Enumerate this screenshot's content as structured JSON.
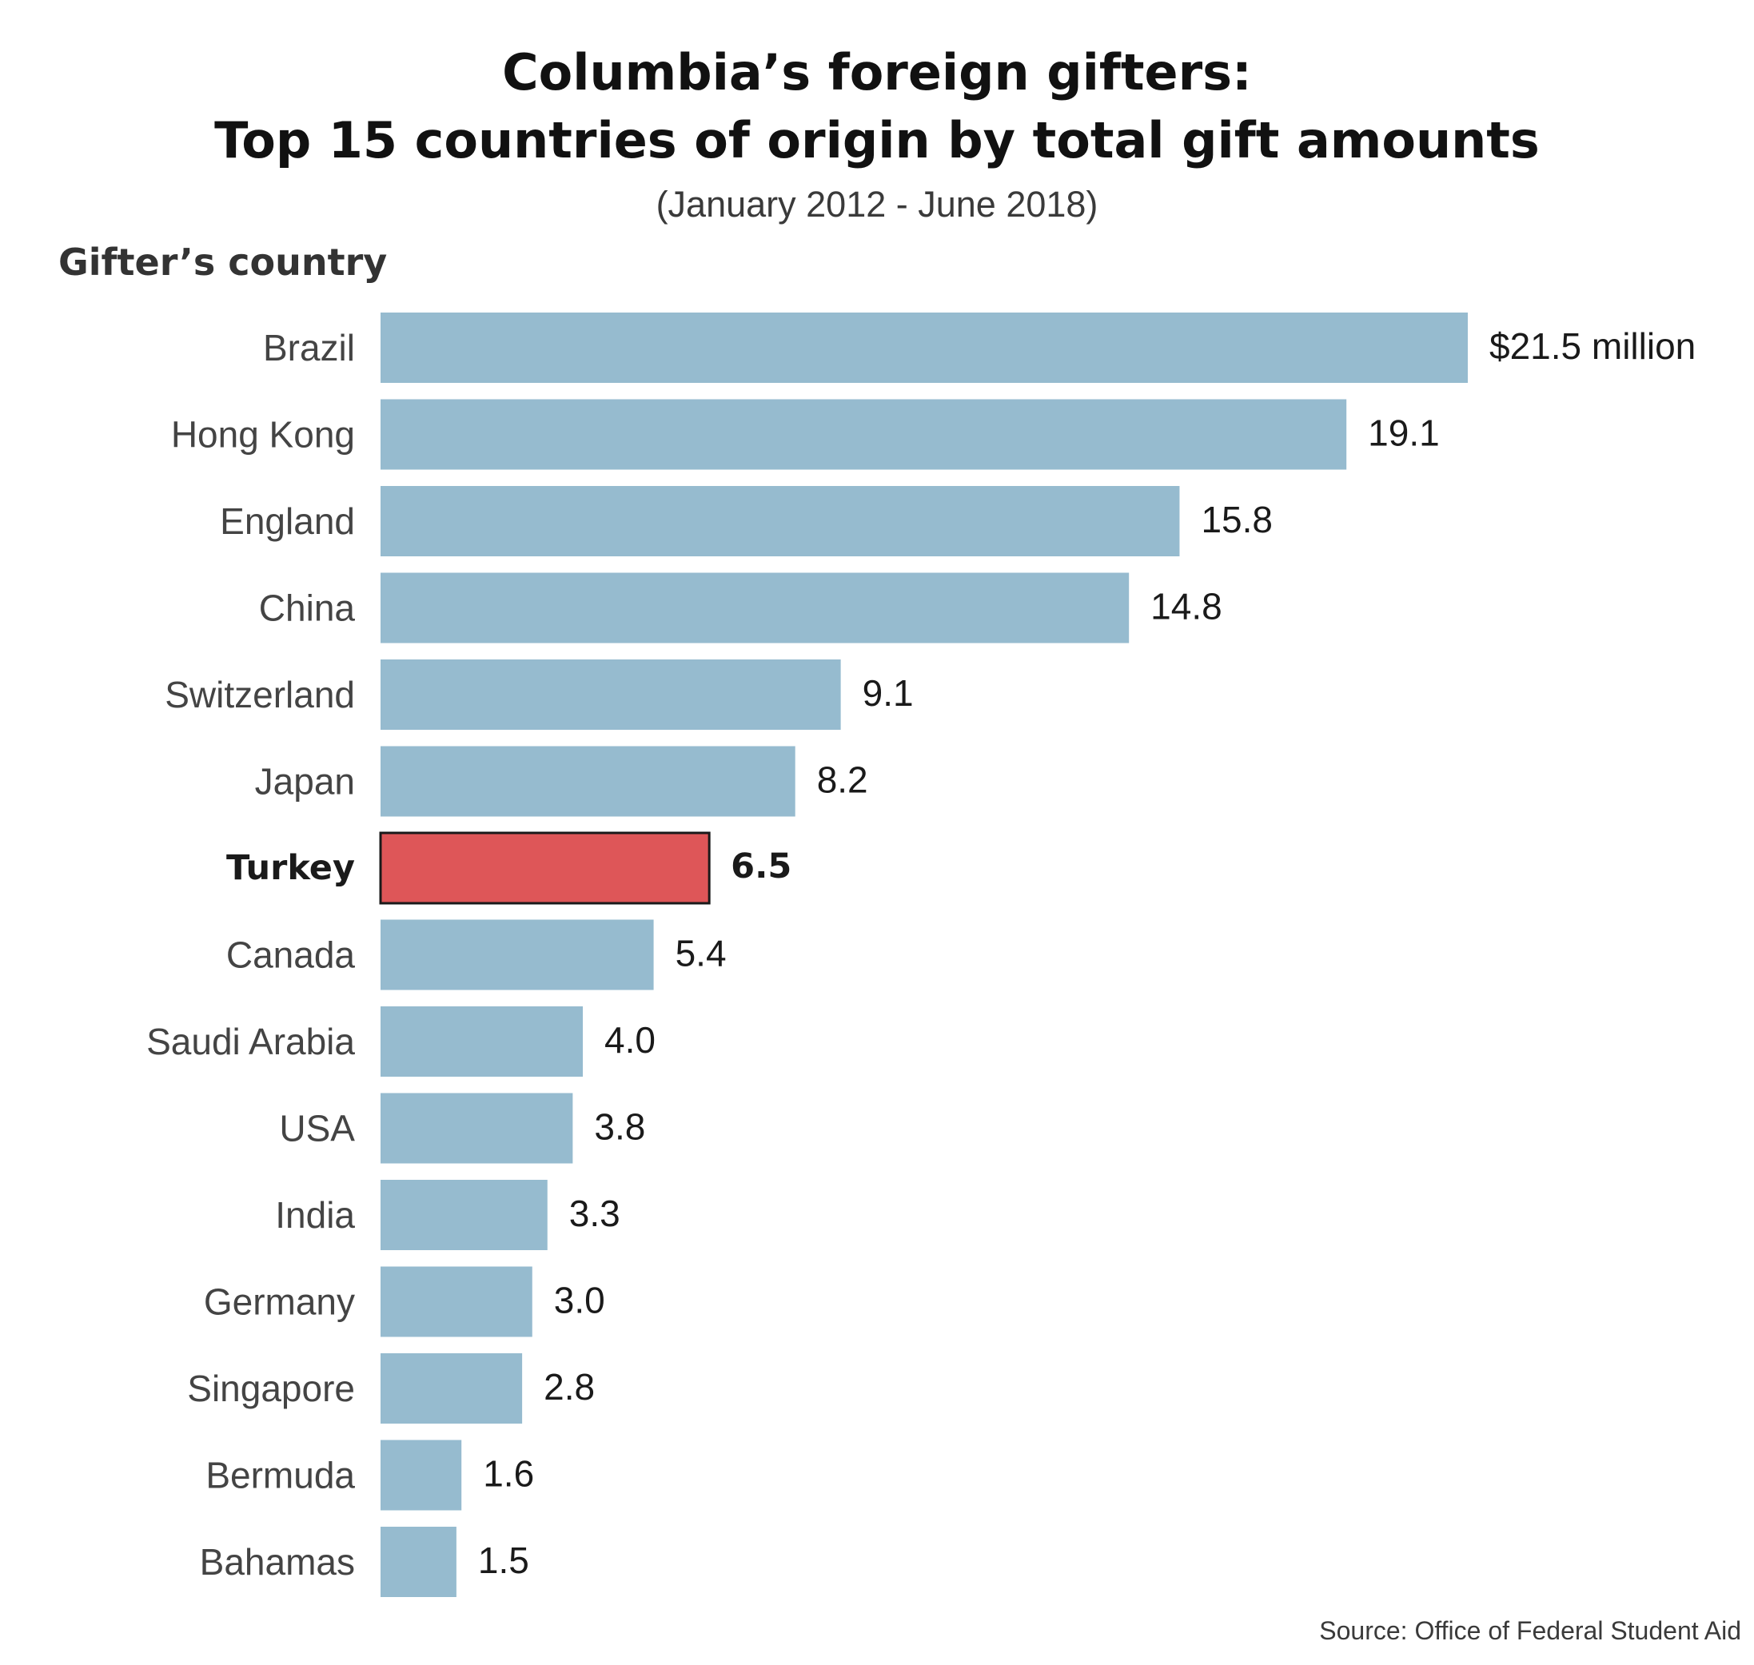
{
  "header": {
    "title_line1": "Columbia’s foreign gifters:",
    "title_line2": "Top 15 countries of origin by total gift amounts",
    "subtitle": "(January 2012 - June 2018)"
  },
  "footer": {
    "source": "Source: Office of Federal Student Aid"
  },
  "colors": {
    "bar": "#96bbcf",
    "highlight": "#de5658",
    "highlight_outline": "#1a1a1a"
  },
  "chart_data": {
    "type": "bar",
    "orientation": "horizontal",
    "title": "Columbia’s foreign gifters: Top 15 countries of origin by total gift amounts",
    "subtitle": "(January 2012 - June 2018)",
    "ylabel": "Gifter’s country",
    "xlabel": "",
    "unit": "$ million",
    "categories": [
      "Brazil",
      "Hong Kong",
      "England",
      "China",
      "Switzerland",
      "Japan",
      "Turkey",
      "Canada",
      "Saudi Arabia",
      "USA",
      "India",
      "Germany",
      "Singapore",
      "Bermuda",
      "Bahamas"
    ],
    "values": [
      21.5,
      19.1,
      15.8,
      14.8,
      9.1,
      8.2,
      6.5,
      5.4,
      4.0,
      3.8,
      3.3,
      3.0,
      2.8,
      1.6,
      1.5
    ],
    "value_labels": [
      "$21.5 million",
      "19.1",
      "15.8",
      "14.8",
      "9.1",
      "8.2",
      "6.5",
      "5.4",
      "4.0",
      "3.8",
      "3.3",
      "3.0",
      "2.8",
      "1.6",
      "1.5"
    ],
    "highlight": "Turkey",
    "xlim": [
      0,
      21.5
    ],
    "grid": false,
    "legend": "none"
  }
}
